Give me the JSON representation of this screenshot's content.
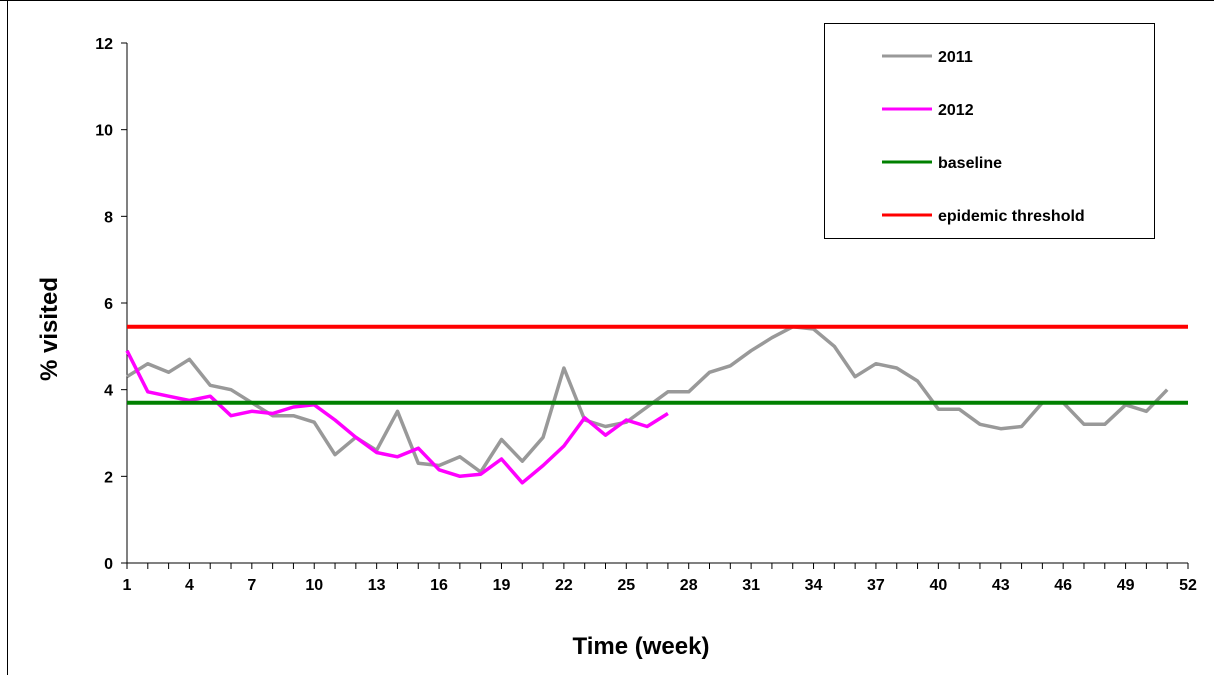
{
  "chart_data": {
    "type": "line",
    "xlabel": "Time (week)",
    "ylabel": "% visited",
    "xlim": [
      1,
      52
    ],
    "ylim": [
      0,
      12
    ],
    "x_ticks": [
      1,
      4,
      7,
      10,
      13,
      16,
      19,
      22,
      25,
      28,
      31,
      34,
      37,
      40,
      43,
      46,
      49,
      52
    ],
    "y_ticks": [
      0,
      2,
      4,
      6,
      8,
      10,
      12
    ],
    "grid": false,
    "legend_position": "top-right",
    "series": [
      {
        "name": "2011",
        "color": "#999999",
        "x": [
          1,
          2,
          3,
          4,
          5,
          6,
          7,
          8,
          9,
          10,
          11,
          12,
          13,
          14,
          15,
          16,
          17,
          18,
          19,
          20,
          21,
          22,
          23,
          24,
          25,
          26,
          27,
          28,
          29,
          30,
          31,
          32,
          33,
          34,
          35,
          36,
          37,
          38,
          39,
          40,
          41,
          42,
          43,
          44,
          45,
          46,
          47,
          48,
          49,
          50,
          51
        ],
        "values": [
          4.3,
          4.6,
          4.4,
          4.7,
          4.1,
          4.0,
          3.7,
          3.4,
          3.4,
          3.25,
          2.5,
          2.9,
          2.6,
          3.5,
          2.3,
          2.25,
          2.45,
          2.1,
          2.85,
          2.35,
          2.9,
          4.5,
          3.3,
          3.15,
          3.25,
          3.6,
          3.95,
          3.95,
          4.4,
          4.55,
          4.9,
          5.2,
          5.45,
          5.4,
          5.0,
          4.3,
          4.6,
          4.5,
          4.2,
          3.55,
          3.55,
          3.2,
          3.1,
          3.15,
          3.7,
          3.7,
          3.2,
          3.2,
          3.65,
          3.5,
          4.0
        ]
      },
      {
        "name": "2012",
        "color": "#ff00ff",
        "x": [
          1,
          2,
          3,
          4,
          5,
          6,
          7,
          8,
          9,
          10,
          11,
          12,
          13,
          14,
          15,
          16,
          17,
          18,
          19,
          20,
          21,
          22,
          23,
          24,
          25,
          26,
          27
        ],
        "values": [
          4.9,
          3.95,
          3.85,
          3.75,
          3.85,
          3.4,
          3.5,
          3.45,
          3.6,
          3.65,
          3.3,
          2.9,
          2.55,
          2.45,
          2.65,
          2.15,
          2.0,
          2.05,
          2.4,
          1.85,
          2.25,
          2.7,
          3.35,
          2.95,
          3.3,
          3.15,
          3.45
        ]
      },
      {
        "name": "baseline",
        "color": "#008000",
        "x": [
          1,
          52
        ],
        "values": [
          3.7,
          3.7
        ]
      },
      {
        "name": "epidemic threshold",
        "color": "#ff0000",
        "x": [
          1,
          52
        ],
        "values": [
          5.45,
          5.45
        ]
      }
    ]
  }
}
